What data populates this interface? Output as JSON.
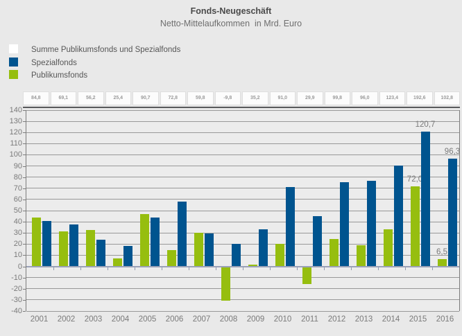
{
  "header": {
    "title": "Fonds-Neugeschäft",
    "subtitle": "Netto-Mittelaufkommen  in Mrd. Euro"
  },
  "legend": [
    {
      "name": "summe",
      "label": "Summe Publikumsfonds und Spezialfonds",
      "color": "#FFFFFF"
    },
    {
      "name": "spezialfonds",
      "label": "Spezialfonds",
      "color": "#00548F"
    },
    {
      "name": "publikumsfonds",
      "label": "Publikumsfonds",
      "color": "#96BE0F"
    }
  ],
  "sum_row": [
    "84,8",
    "69,1",
    "56,2",
    "25,4",
    "90,7",
    "72,8",
    "59,8",
    "-9,8",
    "35,2",
    "91,0",
    "29,9",
    "99,8",
    "96,0",
    "123,4",
    "192,6",
    "102,8"
  ],
  "chart_data": {
    "type": "bar",
    "title": "Fonds-Neugeschäft",
    "subtitle": "Netto-Mittelaufkommen in Mrd. Euro",
    "categories": [
      "2001",
      "2002",
      "2003",
      "2004",
      "2005",
      "2006",
      "2007",
      "2008",
      "2009",
      "2010",
      "2011",
      "2012",
      "2013",
      "2014",
      "2015",
      "2016"
    ],
    "series": [
      {
        "name": "Publikumsfonds",
        "color": "#96BE0F",
        "values": [
          44.0,
          31.3,
          32.4,
          6.9,
          47.2,
          14.6,
          30.2,
          -30.3,
          1.7,
          20.0,
          -15.1,
          24.3,
          19.0,
          33.0,
          72.0,
          6.5
        ],
        "point_labels": [
          "",
          "",
          "",
          "",
          "",
          "",
          "",
          "",
          "",
          "",
          "",
          "",
          "",
          "",
          "72,0",
          "6,5"
        ]
      },
      {
        "name": "Spezialfonds",
        "color": "#00548F",
        "values": [
          40.8,
          37.8,
          23.8,
          18.5,
          43.5,
          58.2,
          29.6,
          20.5,
          33.5,
          71.0,
          45.0,
          75.5,
          77.0,
          90.4,
          120.7,
          96.3
        ],
        "point_labels": [
          "",
          "",
          "",
          "",
          "",
          "",
          "",
          "",
          "",
          "",
          "",
          "",
          "",
          "",
          "120,7",
          "96,3"
        ]
      }
    ],
    "sum_series": {
      "name": "Summe Publikumsfonds und Spezialfonds",
      "values": [
        84.8,
        69.1,
        56.2,
        25.4,
        90.7,
        72.8,
        59.8,
        -9.8,
        35.2,
        91.0,
        29.9,
        99.8,
        96.0,
        123.4,
        192.6,
        102.8
      ]
    },
    "ylim": [
      -40,
      140
    ],
    "ytick_step": 10,
    "grid": true,
    "legend_position": "top-left"
  },
  "colors": {
    "page_bg": "#E9E9E9",
    "plot_bg": "#ECECEC",
    "gridline": "#7C7C7C",
    "baseline": "#9AA1B7",
    "axis_text": "#7A7A7A",
    "sum_underline": "#58595B"
  }
}
